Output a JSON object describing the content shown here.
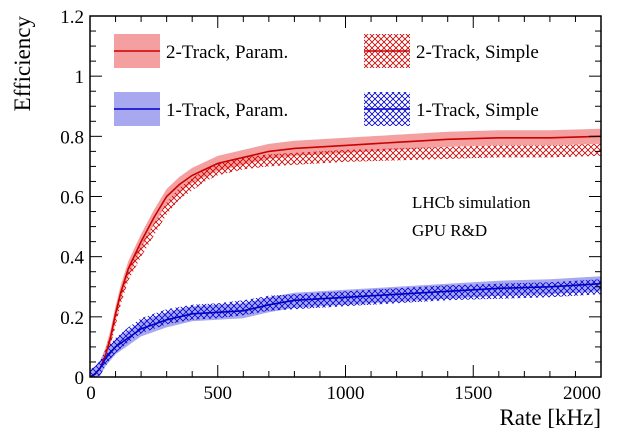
{
  "chart_data": {
    "type": "line",
    "title": "",
    "xlabel": "Rate [kHz]",
    "ylabel": "Efficiency",
    "xlim": [
      0,
      2000
    ],
    "ylim": [
      0,
      1.2
    ],
    "xticks": [
      0,
      500,
      1000,
      1500,
      2000
    ],
    "yticks": [
      0,
      0.2,
      0.4,
      0.6,
      0.8,
      1,
      1.2
    ],
    "xtick_labels": [
      "0",
      "500",
      "1000",
      "1500",
      "2000"
    ],
    "ytick_labels": [
      "0",
      "0.2",
      "0.4",
      "0.6",
      "0.8",
      "1",
      "1.2"
    ],
    "grid": false,
    "legend_position": "top",
    "annotations": [
      "LHCb simulation",
      "GPU R&D"
    ],
    "series": [
      {
        "name": "2-Track, Param.",
        "color": "#cc0000",
        "band_color": "#f4a0a0",
        "style": "line-with-band",
        "x": [
          0,
          20,
          40,
          60,
          80,
          100,
          120,
          150,
          200,
          250,
          300,
          350,
          400,
          450,
          500,
          600,
          700,
          800,
          900,
          1000,
          1200,
          1400,
          1600,
          1800,
          2000
        ],
        "y": [
          0,
          0.01,
          0.03,
          0.07,
          0.13,
          0.21,
          0.28,
          0.36,
          0.45,
          0.53,
          0.6,
          0.64,
          0.67,
          0.69,
          0.71,
          0.73,
          0.75,
          0.76,
          0.765,
          0.77,
          0.78,
          0.79,
          0.795,
          0.795,
          0.8
        ],
        "band_halfwidth": 0.025
      },
      {
        "name": "2-Track, Simple",
        "color": "#cc0000",
        "style": "crosshatch-band",
        "x": [
          0,
          20,
          40,
          60,
          80,
          100,
          120,
          150,
          200,
          250,
          300,
          350,
          400,
          450,
          500,
          600,
          700,
          800,
          900,
          1000,
          1200,
          1400,
          1600,
          1800,
          2000
        ],
        "y": [
          0,
          0.01,
          0.03,
          0.07,
          0.12,
          0.19,
          0.26,
          0.34,
          0.42,
          0.49,
          0.56,
          0.61,
          0.64,
          0.67,
          0.69,
          0.71,
          0.72,
          0.725,
          0.73,
          0.735,
          0.74,
          0.745,
          0.75,
          0.75,
          0.755
        ],
        "band_halfwidth": 0.02
      },
      {
        "name": "1-Track, Param.",
        "color": "#0000cc",
        "band_color": "#a8a8f0",
        "style": "line-with-band",
        "x": [
          0,
          20,
          40,
          60,
          80,
          100,
          150,
          200,
          300,
          400,
          500,
          600,
          700,
          800,
          1000,
          1200,
          1400,
          1600,
          1800,
          2000
        ],
        "y": [
          0,
          0.01,
          0.03,
          0.06,
          0.08,
          0.1,
          0.13,
          0.16,
          0.19,
          0.21,
          0.215,
          0.22,
          0.24,
          0.255,
          0.265,
          0.275,
          0.285,
          0.295,
          0.3,
          0.31
        ],
        "band_halfwidth": 0.025
      },
      {
        "name": "1-Track, Simple",
        "color": "#0000cc",
        "style": "crosshatch-band",
        "x": [
          0,
          20,
          40,
          60,
          80,
          100,
          150,
          200,
          300,
          400,
          500,
          600,
          700,
          800,
          1000,
          1200,
          1400,
          1600,
          1800,
          2000
        ],
        "y": [
          0,
          0.01,
          0.03,
          0.06,
          0.085,
          0.105,
          0.14,
          0.17,
          0.2,
          0.215,
          0.22,
          0.23,
          0.245,
          0.25,
          0.26,
          0.27,
          0.28,
          0.285,
          0.29,
          0.3
        ],
        "band_halfwidth": 0.025
      }
    ]
  }
}
